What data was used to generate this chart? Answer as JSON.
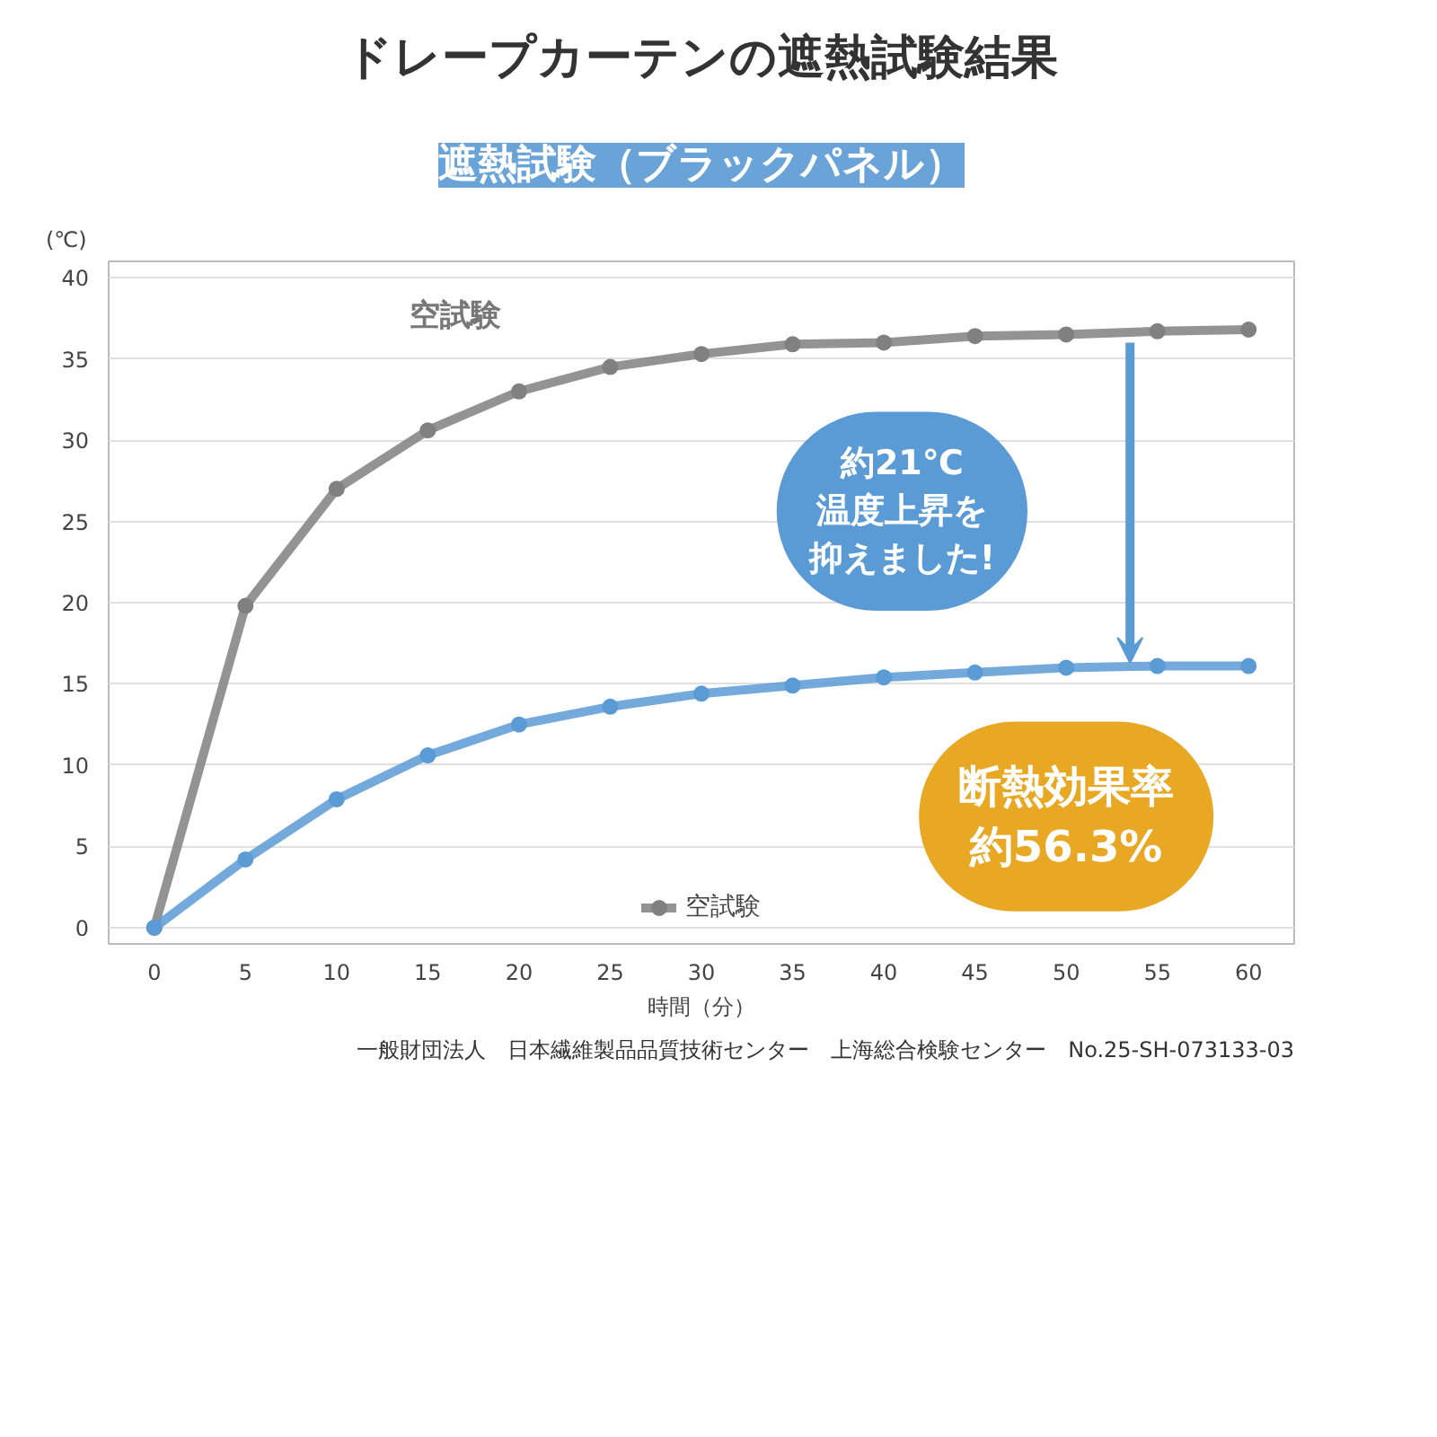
{
  "chart_data": {
    "type": "line",
    "title": "ドレープカーテンの遮熱試験結果",
    "subtitle": "遮熱試験（ブラックパネル）",
    "xlabel": "時間（分）",
    "ylabel": "(℃)",
    "x": [
      0,
      5,
      10,
      15,
      20,
      25,
      30,
      35,
      40,
      45,
      50,
      55,
      60
    ],
    "series": [
      {
        "name": "空試験",
        "color": "#808080",
        "values": [
          0,
          19.8,
          27,
          30.6,
          33,
          34.5,
          35.3,
          35.9,
          36,
          36.4,
          36.5,
          36.7,
          36.8
        ]
      },
      {
        "color": "#5b9bd5",
        "values": [
          0,
          4.2,
          7.9,
          10.6,
          12.5,
          13.6,
          14.4,
          14.9,
          15.4,
          15.7,
          16,
          16.1,
          16.1
        ]
      }
    ],
    "xlim": [
      -2.5,
      62.5
    ],
    "ylim": [
      -1,
      41
    ],
    "xticks": [
      0,
      5,
      10,
      15,
      20,
      25,
      30,
      35,
      40,
      45,
      50,
      55,
      60
    ],
    "yticks": [
      0,
      5,
      10,
      15,
      20,
      25,
      30,
      35,
      40
    ],
    "grid": "y",
    "legend": "bottom",
    "marker": "circle",
    "line_style": "solid",
    "annotations": [
      "空試験",
      "約21℃",
      "温度上昇を抑えました!",
      "断熱効果率",
      "約56.3%",
      "一般財団法人　日本繊維製品品質技術センター　上海総合検験センター　No.25-SH-073133-03"
    ]
  }
}
